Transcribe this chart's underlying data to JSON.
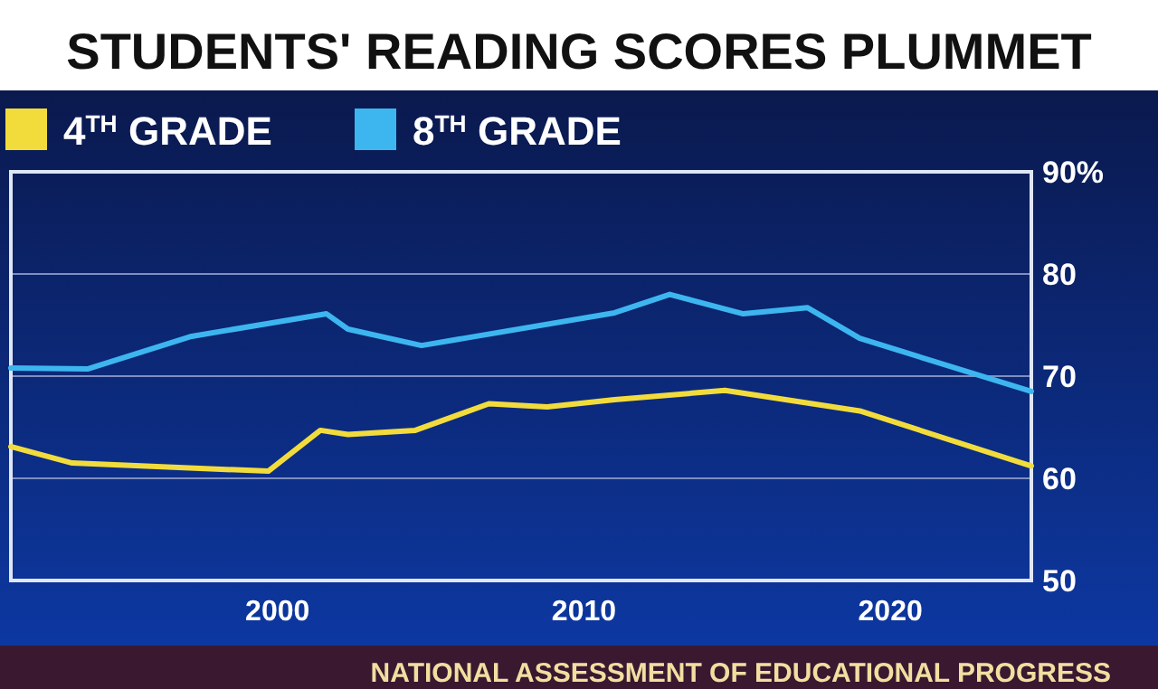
{
  "chart_data": {
    "type": "line",
    "title": "STUDENTS' READING SCORES PLUMMET",
    "annotations": [
      "NATIONAL ASSESSMENT OF EDUCATIONAL PROGRESS"
    ],
    "xlim": [
      1991.3,
      2024.6
    ],
    "xticks": [
      2000,
      2010,
      2020
    ],
    "ylim": [
      50,
      90
    ],
    "yticks": [
      50,
      60,
      70,
      80,
      {
        "value": 90,
        "label": "90%"
      }
    ],
    "grid": "y",
    "legend": "top left",
    "marker": "none",
    "line_style": "solid",
    "series": [
      {
        "name": "4$^{TH}$ GRADE",
        "color": "#f2dc3c",
        "x": [
          1991.3,
          1993.3,
          1999.7,
          2001.4,
          2002.3,
          2004.5,
          2006.9,
          2008.8,
          2011.0,
          2014.6,
          2019.0,
          2024.6
        ],
        "values": [
          63.1,
          61.5,
          60.7,
          64.7,
          64.3,
          64.7,
          67.3,
          67.0,
          67.7,
          68.6,
          66.6,
          61.2
        ]
      },
      {
        "name": "8$^{TH}$ GRADE",
        "color": "#3db6f0",
        "x": [
          1991.3,
          1993.8,
          1997.2,
          2001.6,
          2002.3,
          2004.7,
          2011.0,
          2012.8,
          2015.2,
          2017.3,
          2019.0,
          2024.6
        ],
        "values": [
          70.8,
          70.7,
          73.9,
          76.1,
          74.6,
          73.0,
          76.2,
          78.0,
          76.1,
          76.7,
          73.7,
          68.5
        ]
      }
    ]
  }
}
